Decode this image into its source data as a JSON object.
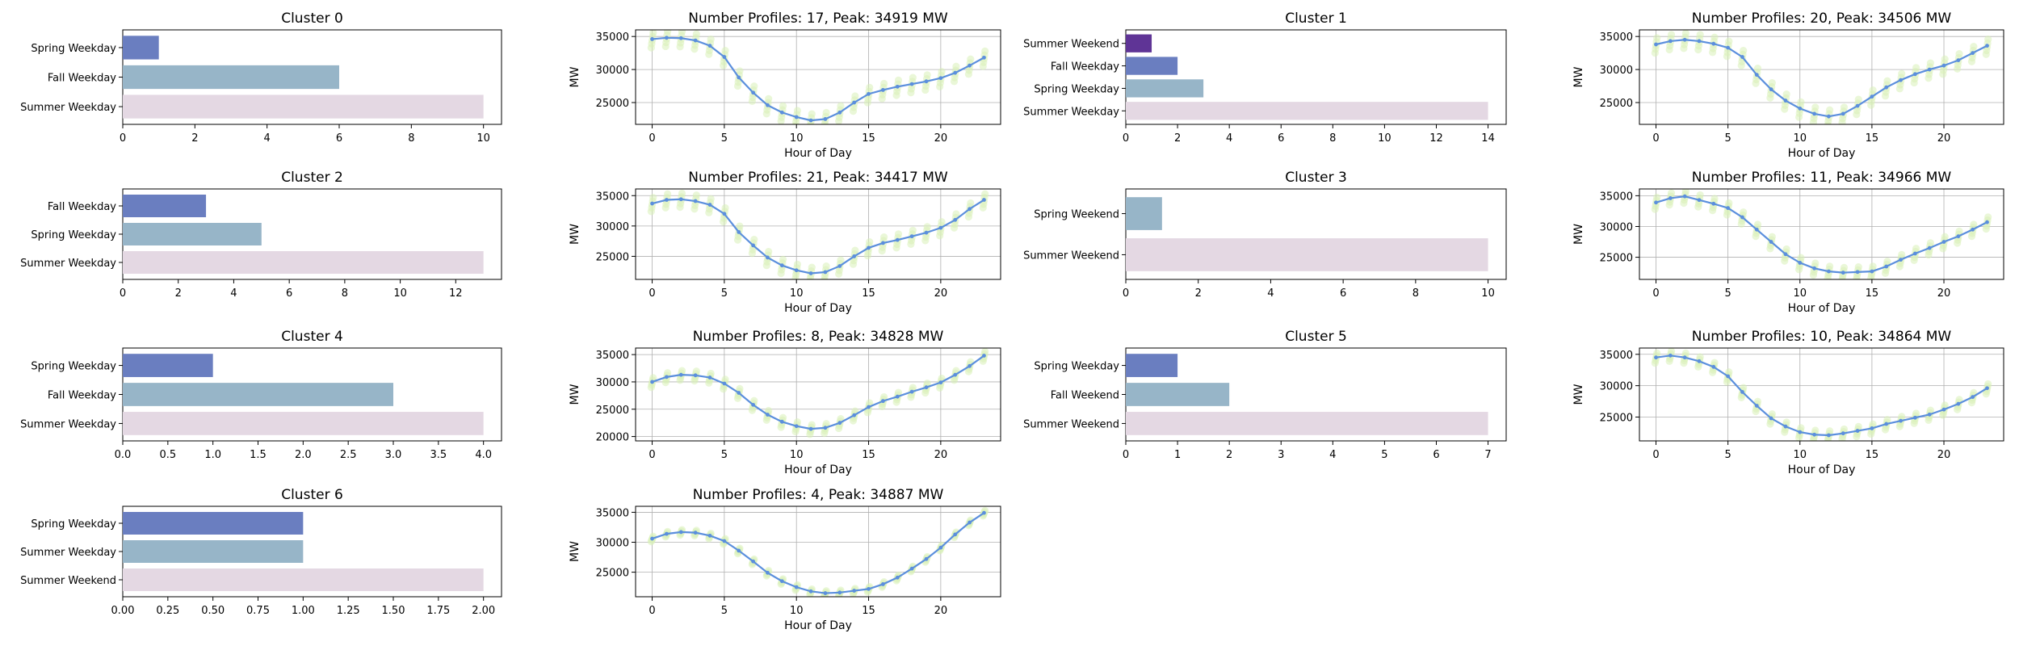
{
  "colors": {
    "bar_palette": [
      "#5f3496",
      "#6a7ec0",
      "#97b5c8",
      "#e4d8e3"
    ],
    "line": "#5b8fdd",
    "profile_cloud": "#d9f0b8",
    "grid": "#b0b0b0"
  },
  "chart_data": [
    {
      "id": "c0-bar",
      "type": "bar",
      "orientation": "horizontal",
      "title": "Cluster 0",
      "categories": [
        "Spring Weekday",
        "Fall Weekday",
        "Summer Weekday"
      ],
      "values": [
        1,
        6,
        10
      ],
      "xlim": [
        0,
        10.5
      ],
      "xticks": [
        0,
        2,
        4,
        6,
        8,
        10
      ],
      "grid": false
    },
    {
      "id": "c0-line",
      "type": "line",
      "title": "Number Profiles: 17, Peak: 34919 MW",
      "xlabel": "Hour of Day",
      "ylabel": "MW",
      "x": [
        0,
        1,
        2,
        3,
        4,
        5,
        6,
        7,
        8,
        9,
        10,
        11,
        12,
        13,
        14,
        15,
        16,
        17,
        18,
        19,
        20,
        21,
        22,
        23
      ],
      "values": [
        34600,
        34800,
        34750,
        34400,
        33600,
        31900,
        28800,
        26500,
        24600,
        23500,
        22800,
        22300,
        22500,
        23500,
        25000,
        26300,
        26900,
        27400,
        27800,
        28200,
        28700,
        29500,
        30600,
        31800
      ],
      "spread": 1300,
      "ylim": [
        21700,
        36000
      ],
      "yticks": [
        25000,
        30000,
        35000
      ],
      "xticks": [
        0,
        5,
        10,
        15,
        20
      ],
      "grid": true
    },
    {
      "id": "c1-bar",
      "type": "bar",
      "orientation": "horizontal",
      "title": "Cluster 1",
      "categories": [
        "Summer Weekend",
        "Fall Weekday",
        "Spring Weekday",
        "Summer Weekday"
      ],
      "values": [
        1,
        2,
        3,
        14
      ],
      "xlim": [
        0,
        14.7
      ],
      "xticks": [
        0,
        2,
        4,
        6,
        8,
        10,
        12,
        14
      ],
      "grid": false
    },
    {
      "id": "c1-line",
      "type": "line",
      "title": "Number Profiles: 20, Peak: 34506 MW",
      "xlabel": "Hour of Day",
      "ylabel": "MW",
      "x": [
        0,
        1,
        2,
        3,
        4,
        5,
        6,
        7,
        8,
        9,
        10,
        11,
        12,
        13,
        14,
        15,
        16,
        17,
        18,
        19,
        20,
        21,
        22,
        23
      ],
      "values": [
        33800,
        34300,
        34500,
        34300,
        33900,
        33300,
        31900,
        29200,
        27000,
        25300,
        24100,
        23300,
        22900,
        23300,
        24500,
        25900,
        27300,
        28400,
        29300,
        30000,
        30600,
        31400,
        32500,
        33600
      ],
      "spread": 1300,
      "ylim": [
        21700,
        36000
      ],
      "yticks": [
        25000,
        30000,
        35000
      ],
      "xticks": [
        0,
        5,
        10,
        15,
        20
      ],
      "grid": true
    },
    {
      "id": "c2-bar",
      "type": "bar",
      "orientation": "horizontal",
      "title": "Cluster 2",
      "categories": [
        "Fall Weekday",
        "Spring Weekday",
        "Summer Weekday"
      ],
      "values": [
        3,
        5,
        13
      ],
      "xlim": [
        0,
        13.65
      ],
      "xticks": [
        0,
        2,
        4,
        6,
        8,
        10,
        12
      ],
      "grid": false
    },
    {
      "id": "c2-line",
      "type": "line",
      "title": "Number Profiles: 21, Peak: 34417 MW",
      "xlabel": "Hour of Day",
      "ylabel": "MW",
      "x": [
        0,
        1,
        2,
        3,
        4,
        5,
        6,
        7,
        8,
        9,
        10,
        11,
        12,
        13,
        14,
        15,
        16,
        17,
        18,
        19,
        20,
        21,
        22,
        23
      ],
      "values": [
        33700,
        34300,
        34400,
        34100,
        33500,
        32000,
        29000,
        26800,
        24800,
        23500,
        22700,
        22200,
        22400,
        23400,
        25000,
        26400,
        27200,
        27700,
        28300,
        28900,
        29700,
        31000,
        32800,
        34300
      ],
      "spread": 1300,
      "ylim": [
        21200,
        36100
      ],
      "yticks": [
        25000,
        30000,
        35000
      ],
      "xticks": [
        0,
        5,
        10,
        15,
        20
      ],
      "grid": true
    },
    {
      "id": "c3-bar",
      "type": "bar",
      "orientation": "horizontal",
      "title": "Cluster 3",
      "categories": [
        "Spring Weekend",
        "Summer Weekend"
      ],
      "values": [
        1,
        10
      ],
      "xlim": [
        0,
        10.5
      ],
      "xticks": [
        0,
        2,
        4,
        6,
        8,
        10
      ],
      "grid": false
    },
    {
      "id": "c3-line",
      "type": "line",
      "title": "Number Profiles: 11, Peak: 34966 MW",
      "xlabel": "Hour of Day",
      "ylabel": "MW",
      "x": [
        0,
        1,
        2,
        3,
        4,
        5,
        6,
        7,
        8,
        9,
        10,
        11,
        12,
        13,
        14,
        15,
        16,
        17,
        18,
        19,
        20,
        21,
        22,
        23
      ],
      "values": [
        33900,
        34600,
        34900,
        34300,
        33700,
        33000,
        31500,
        29500,
        27500,
        25500,
        24100,
        23200,
        22700,
        22500,
        22600,
        22700,
        23500,
        24600,
        25600,
        26500,
        27500,
        28400,
        29500,
        30700
      ],
      "spread": 1100,
      "ylim": [
        21400,
        36100
      ],
      "yticks": [
        25000,
        30000,
        35000
      ],
      "xticks": [
        0,
        5,
        10,
        15,
        20
      ],
      "grid": true
    },
    {
      "id": "c4-bar",
      "type": "bar",
      "orientation": "horizontal",
      "title": "Cluster 4",
      "categories": [
        "Spring Weekday",
        "Fall Weekday",
        "Summer Weekday"
      ],
      "values": [
        1,
        3,
        4
      ],
      "xlim": [
        0,
        4.2
      ],
      "xticks": [
        0,
        0.5,
        1,
        1.5,
        2,
        2.5,
        3,
        3.5,
        4
      ],
      "xtick_labels": [
        "0.0",
        "0.5",
        "1.0",
        "1.5",
        "2.0",
        "2.5",
        "3.0",
        "3.5",
        "4.0"
      ],
      "grid": false
    },
    {
      "id": "c4-line",
      "type": "line",
      "title": "Number Profiles: 8, Peak: 34828 MW",
      "xlabel": "Hour of Day",
      "ylabel": "MW",
      "x": [
        0,
        1,
        2,
        3,
        4,
        5,
        6,
        7,
        8,
        9,
        10,
        11,
        12,
        13,
        14,
        15,
        16,
        17,
        18,
        19,
        20,
        21,
        22,
        23
      ],
      "values": [
        30000,
        30900,
        31300,
        31200,
        30800,
        29700,
        28000,
        25800,
        24000,
        22700,
        21900,
        21400,
        21600,
        22500,
        23900,
        25400,
        26500,
        27300,
        28200,
        29000,
        29900,
        31300,
        32900,
        34800
      ],
      "spread": 1000,
      "ylim": [
        19200,
        36200
      ],
      "yticks": [
        20000,
        25000,
        30000,
        35000
      ],
      "xticks": [
        0,
        5,
        10,
        15,
        20
      ],
      "grid": true
    },
    {
      "id": "c5-bar",
      "type": "bar",
      "orientation": "horizontal",
      "title": "Cluster 5",
      "categories": [
        "Spring Weekday",
        "Fall Weekend",
        "Summer Weekend"
      ],
      "values": [
        1,
        2,
        7
      ],
      "xlim": [
        0,
        7.35
      ],
      "xticks": [
        0,
        1,
        2,
        3,
        4,
        5,
        6,
        7
      ],
      "grid": false
    },
    {
      "id": "c5-line",
      "type": "line",
      "title": "Number Profiles: 10, Peak: 34864 MW",
      "xlabel": "Hour of Day",
      "ylabel": "MW",
      "x": [
        0,
        1,
        2,
        3,
        4,
        5,
        6,
        7,
        8,
        9,
        10,
        11,
        12,
        13,
        14,
        15,
        16,
        17,
        18,
        19,
        20,
        21,
        22,
        23
      ],
      "values": [
        34500,
        34800,
        34500,
        33900,
        33000,
        31500,
        29000,
        26800,
        24800,
        23500,
        22600,
        22200,
        22100,
        22400,
        22800,
        23200,
        23900,
        24400,
        24900,
        25400,
        26200,
        27100,
        28200,
        29600
      ],
      "spread": 900,
      "ylim": [
        21200,
        36000
      ],
      "yticks": [
        25000,
        30000,
        35000
      ],
      "xticks": [
        0,
        5,
        10,
        15,
        20
      ],
      "grid": true
    },
    {
      "id": "c6-bar",
      "type": "bar",
      "orientation": "horizontal",
      "title": "Cluster 6",
      "categories": [
        "Spring Weekday",
        "Summer Weekday",
        "Summer Weekend"
      ],
      "values": [
        1,
        1,
        2
      ],
      "xlim": [
        0,
        2.1
      ],
      "xticks": [
        0,
        0.25,
        0.5,
        0.75,
        1,
        1.25,
        1.5,
        1.75,
        2
      ],
      "xtick_labels": [
        "0.00",
        "0.25",
        "0.50",
        "0.75",
        "1.00",
        "1.25",
        "1.50",
        "1.75",
        "2.00"
      ],
      "grid": false
    },
    {
      "id": "c6-line",
      "type": "line",
      "title": "Number Profiles: 4, Peak: 34887 MW",
      "xlabel": "Hour of Day",
      "ylabel": "MW",
      "x": [
        0,
        1,
        2,
        3,
        4,
        5,
        6,
        7,
        8,
        9,
        10,
        11,
        12,
        13,
        14,
        15,
        16,
        17,
        18,
        19,
        20,
        21,
        22,
        23
      ],
      "values": [
        30600,
        31400,
        31700,
        31600,
        31100,
        30200,
        28600,
        26800,
        24900,
        23500,
        22500,
        21800,
        21500,
        21600,
        21900,
        22200,
        23000,
        24100,
        25600,
        27200,
        29100,
        31300,
        33300,
        34900
      ],
      "spread": 500,
      "ylim": [
        20900,
        36000
      ],
      "yticks": [
        25000,
        30000,
        35000
      ],
      "xticks": [
        0,
        5,
        10,
        15,
        20
      ],
      "grid": true
    }
  ]
}
